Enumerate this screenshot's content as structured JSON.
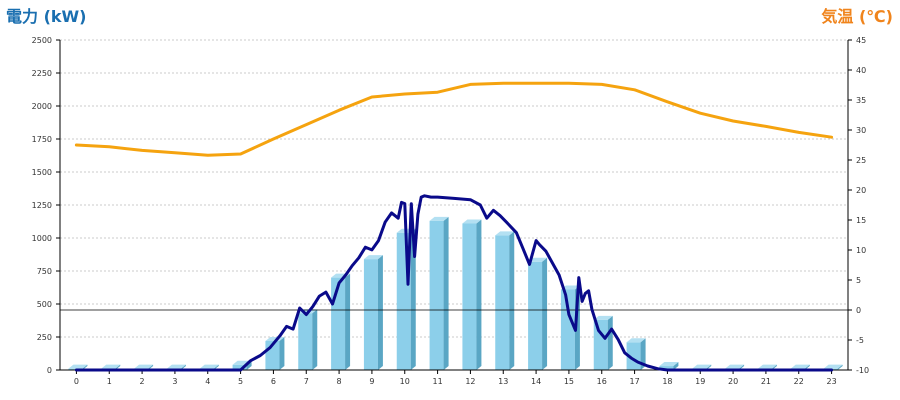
{
  "chart_data": {
    "type": "bar",
    "left_axis_title": "電力 (kW)",
    "right_axis_title": "気温 (℃)",
    "title_colors": {
      "left": "#1a6fb0",
      "right": "#f0841c"
    },
    "colors": {
      "bar_front": "#8ccfea",
      "bar_side": "#5aa6c4",
      "bar_top": "#b3e0f2",
      "power_line": "#0a0a8a",
      "temp_line": "#f5a30f",
      "zero_line": "#000000",
      "grid": "#bbbbbb"
    },
    "categories": [
      "0",
      "1",
      "2",
      "3",
      "4",
      "5",
      "6",
      "7",
      "8",
      "9",
      "10",
      "11",
      "12",
      "13",
      "14",
      "15",
      "16",
      "17",
      "18",
      "19",
      "20",
      "21",
      "22",
      "23"
    ],
    "ylim_left": [
      0,
      2500
    ],
    "yticks_left": [
      0,
      250,
      500,
      750,
      1000,
      1250,
      1500,
      1750,
      2000,
      2250,
      2500
    ],
    "ylim_right": [
      -10,
      45
    ],
    "yticks_right": [
      -10,
      -5,
      0,
      5,
      10,
      15,
      20,
      25,
      30,
      35,
      40,
      45
    ],
    "grid": true,
    "series": [
      {
        "kind": "bar",
        "axis": "left",
        "values": [
          10,
          10,
          10,
          10,
          10,
          40,
          220,
          430,
          700,
          840,
          1040,
          1130,
          1110,
          1020,
          820,
          610,
          380,
          210,
          30,
          10,
          10,
          10,
          10,
          10
        ]
      },
      {
        "kind": "line",
        "axis": "left",
        "x": [
          0,
          1,
          2,
          3,
          4,
          5,
          5.3,
          5.6,
          5.9,
          6.2,
          6.4,
          6.6,
          6.8,
          7.0,
          7.2,
          7.4,
          7.6,
          7.8,
          8.0,
          8.2,
          8.4,
          8.6,
          8.8,
          9.0,
          9.2,
          9.4,
          9.6,
          9.8,
          9.9,
          10.0,
          10.1,
          10.2,
          10.3,
          10.4,
          10.5,
          10.6,
          10.8,
          11.0,
          11.5,
          12.0,
          12.3,
          12.5,
          12.7,
          12.9,
          13.1,
          13.4,
          13.6,
          13.8,
          14.0,
          14.1,
          14.3,
          14.5,
          14.7,
          14.9,
          15.0,
          15.2,
          15.3,
          15.4,
          15.5,
          15.6,
          15.7,
          15.9,
          16.1,
          16.3,
          16.5,
          16.7,
          16.9,
          17.1,
          17.4,
          17.7,
          18.0,
          19,
          20,
          21,
          22,
          23
        ],
        "y": [
          0,
          0,
          0,
          0,
          0,
          0,
          70,
          110,
          170,
          260,
          330,
          310,
          470,
          420,
          480,
          560,
          590,
          500,
          660,
          720,
          790,
          850,
          930,
          910,
          980,
          1120,
          1190,
          1150,
          1270,
          1260,
          650,
          1260,
          860,
          1180,
          1310,
          1320,
          1310,
          1310,
          1300,
          1290,
          1250,
          1150,
          1210,
          1170,
          1120,
          1040,
          920,
          800,
          980,
          950,
          900,
          810,
          720,
          570,
          420,
          300,
          700,
          520,
          580,
          600,
          460,
          300,
          240,
          310,
          230,
          130,
          90,
          60,
          30,
          10,
          0,
          0,
          0,
          0,
          0,
          0
        ]
      },
      {
        "kind": "line",
        "axis": "right",
        "x": [
          0,
          1,
          2,
          3,
          4,
          5,
          6,
          7,
          8,
          9,
          10,
          11,
          12,
          13,
          14,
          15,
          16,
          17,
          18,
          19,
          20,
          21,
          22,
          23
        ],
        "y": [
          27.5,
          27.2,
          26.6,
          26.2,
          25.8,
          26,
          28.5,
          30.9,
          33.3,
          35.5,
          36.0,
          36.3,
          37.6,
          37.8,
          37.8,
          37.8,
          37.6,
          36.7,
          34.7,
          32.8,
          31.5,
          30.6,
          29.6,
          28.8
        ]
      }
    ]
  }
}
